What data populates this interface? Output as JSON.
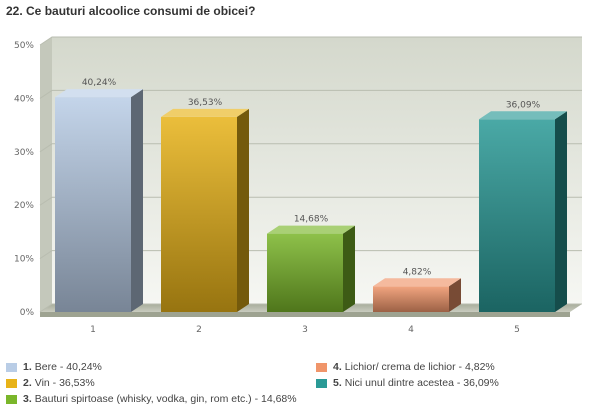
{
  "chart_data": {
    "type": "bar",
    "title": "22. Ce bauturi alcoolice consumi de obicei?",
    "categories": [
      "1",
      "2",
      "3",
      "4",
      "5"
    ],
    "values": [
      40.24,
      36.53,
      14.68,
      4.82,
      36.09
    ],
    "value_labels": [
      "40,24%",
      "36,53%",
      "14,68%",
      "4,82%",
      "36,09%"
    ],
    "colors": [
      "#b9cde6",
      "#e8b318",
      "#7ab62a",
      "#f0956a",
      "#2a9a96"
    ],
    "ylim": [
      0,
      50
    ],
    "yticks": [
      "0%",
      "10%",
      "20%",
      "30%",
      "40%",
      "50%"
    ],
    "grid": true,
    "xlabel": "",
    "ylabel": "",
    "legend_position": "bottom",
    "legend": [
      {
        "num": "1.",
        "text": "Bere - 40,24%",
        "color": "#b9cde6"
      },
      {
        "num": "2.",
        "text": "Vin - 36,53%",
        "color": "#e8b318"
      },
      {
        "num": "3.",
        "text": "Bauturi spirtoase (whisky, vodka, gin, rom etc.) - 14,68%",
        "color": "#7ab62a"
      },
      {
        "num": "4.",
        "text": "Lichior/ crema de lichior - 4,82%",
        "color": "#f0956a"
      },
      {
        "num": "5.",
        "text": "Nici unul dintre acestea - 36,09%",
        "color": "#2a9a96"
      }
    ]
  }
}
